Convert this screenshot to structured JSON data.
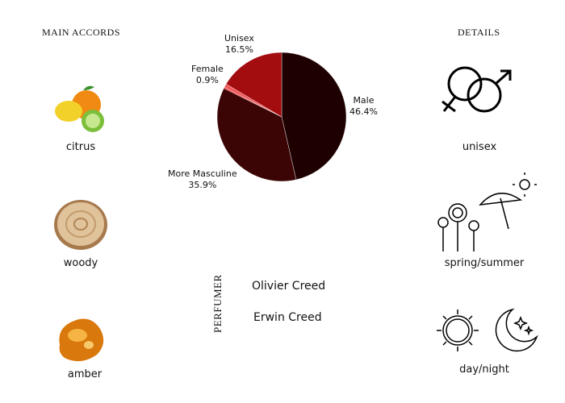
{
  "accords": {
    "title": "Main Accords",
    "items": [
      {
        "label": "citrus",
        "icon": "citrus-fruit-icon"
      },
      {
        "label": "woody",
        "icon": "wood-slice-icon"
      },
      {
        "label": "amber",
        "icon": "amber-resin-icon"
      }
    ]
  },
  "details": {
    "title": "Details",
    "items": [
      {
        "label": "unisex",
        "icon": "gender-symbols-icon"
      },
      {
        "label": "spring/summer",
        "icon": "flowers-umbrella-sun-icon"
      },
      {
        "label": "day/night",
        "icon": "sun-moon-icon"
      }
    ]
  },
  "perfumer": {
    "title": "Perfumer",
    "names": [
      "Olivier Creed",
      "Erwin Creed"
    ]
  },
  "chart_data": {
    "type": "pie",
    "slices": [
      {
        "label": "Male",
        "value": 46.4,
        "display": "46.4%",
        "color": "#1e0000"
      },
      {
        "label": "More Masculine",
        "value": 35.9,
        "display": "35.9%",
        "color": "#3b0505"
      },
      {
        "label": "",
        "value": 0.3,
        "display": "",
        "color": "#e0161e"
      },
      {
        "label": "Female",
        "value": 0.9,
        "display": "0.9%",
        "color": "#f0585a"
      },
      {
        "label": "Unisex",
        "value": 16.5,
        "display": "16.5%",
        "color": "#a30d0f"
      }
    ]
  }
}
